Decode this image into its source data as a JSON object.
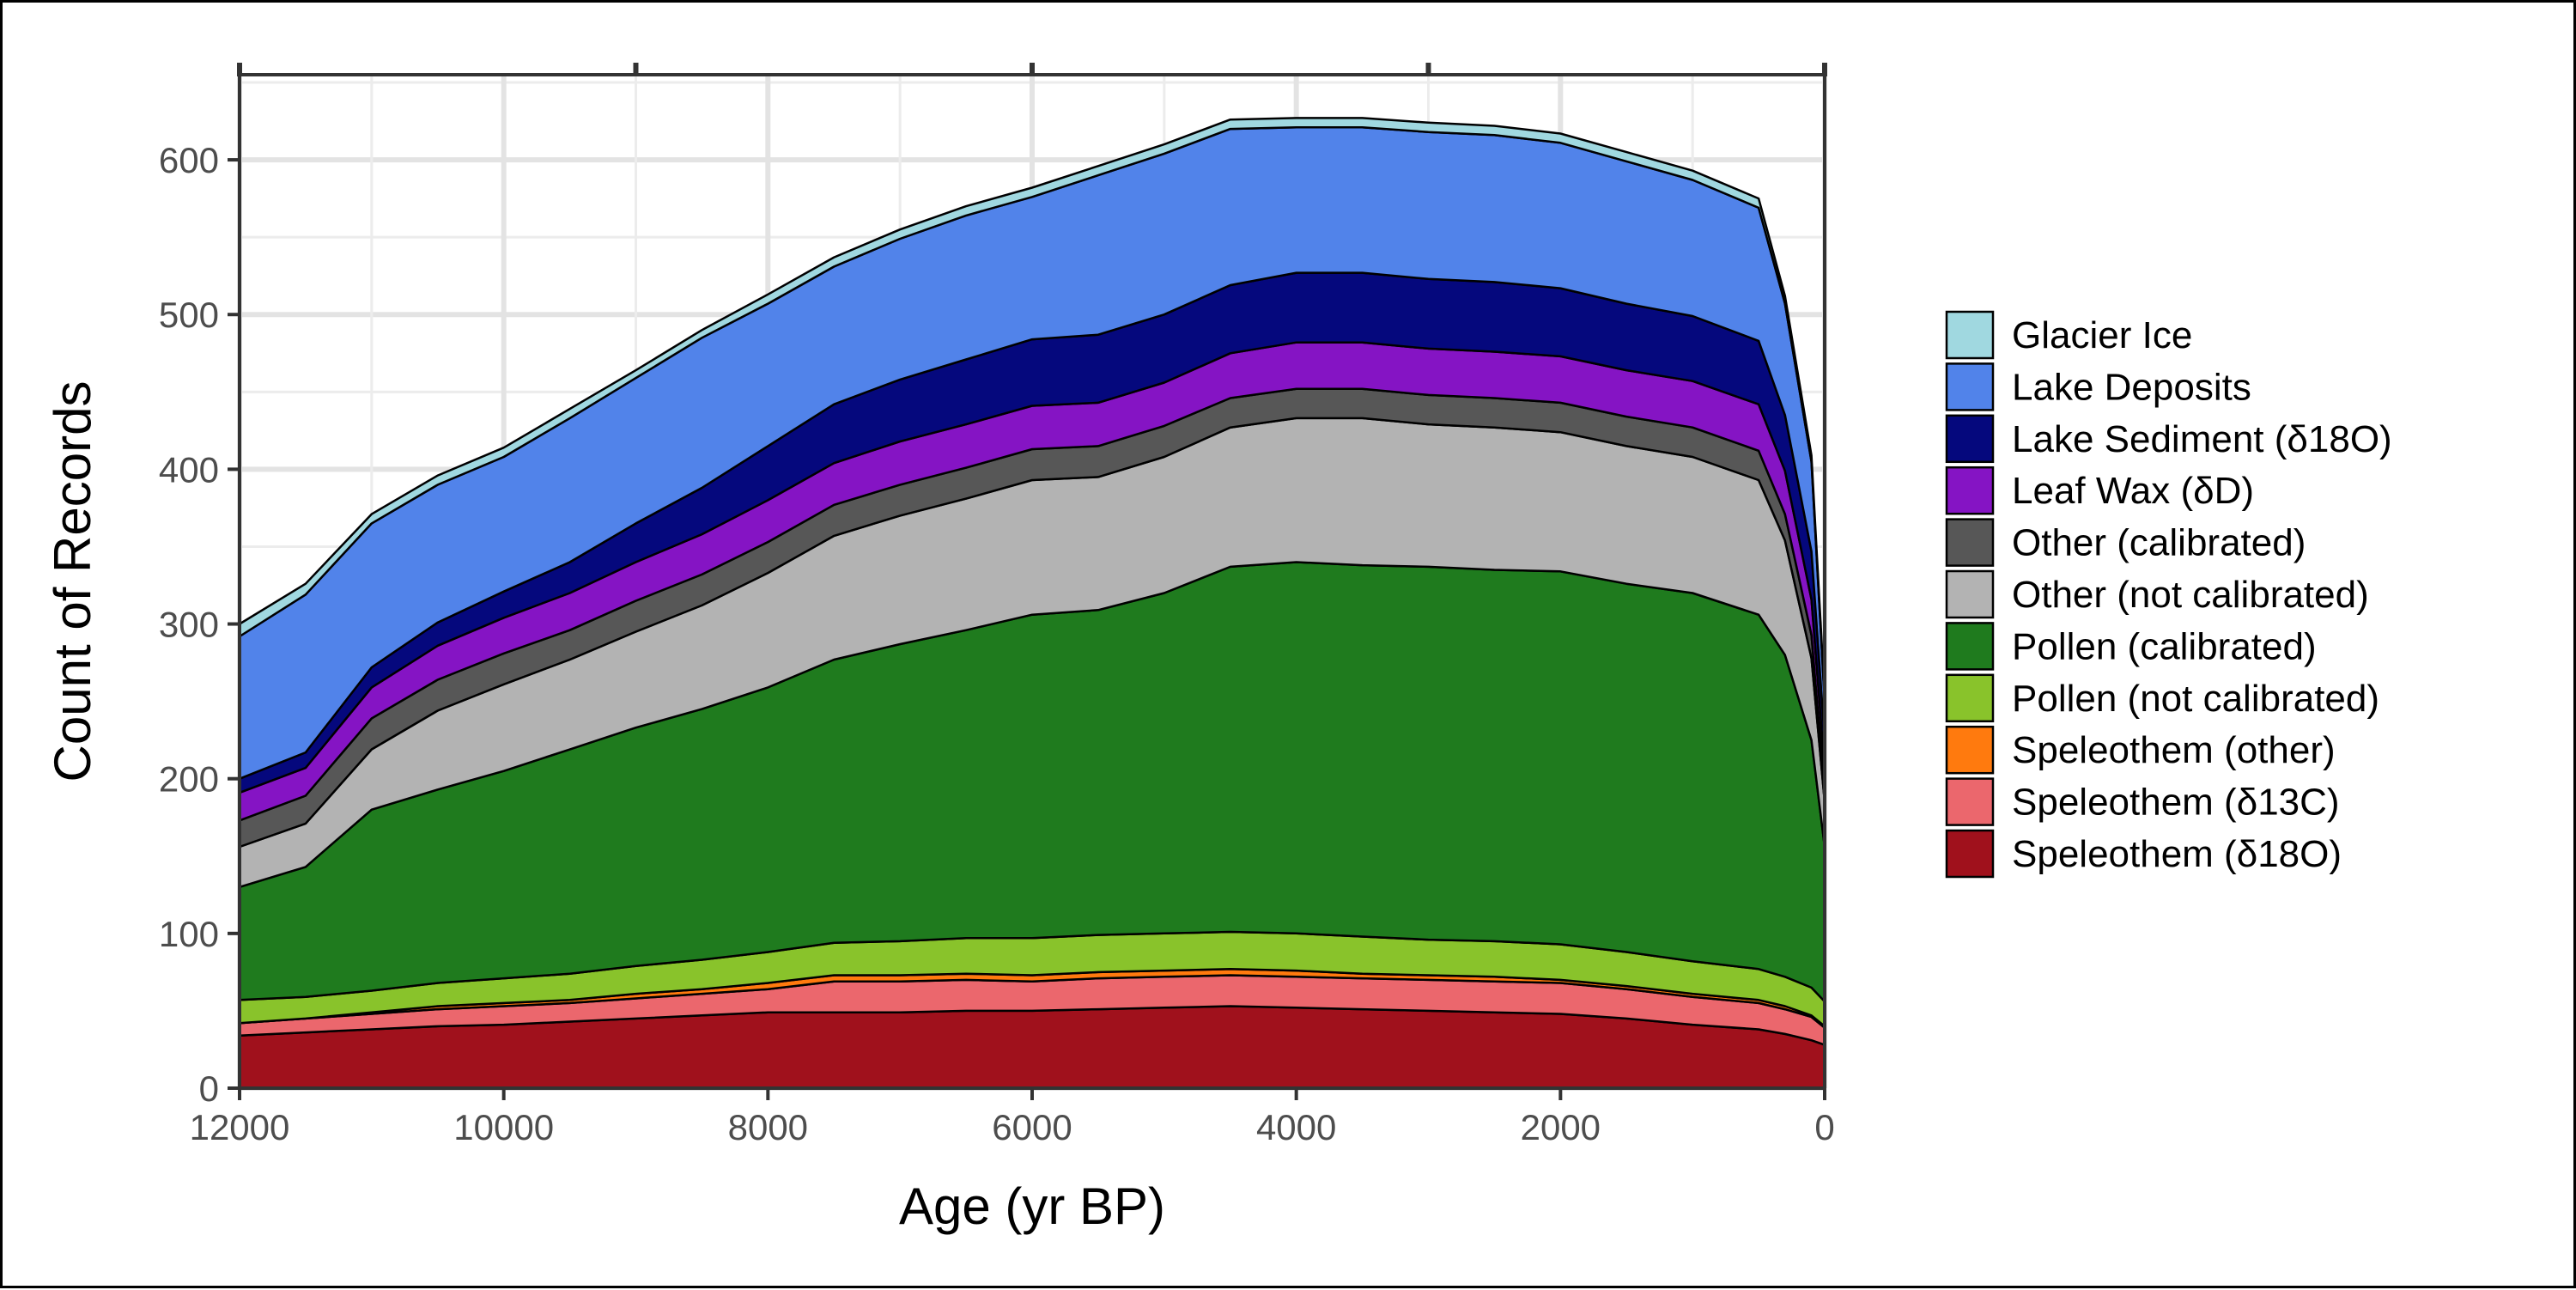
{
  "chart_data": {
    "type": "area",
    "stacked": true,
    "xlabel": "Age (yr BP)",
    "ylabel": "Count of Records",
    "xlim": [
      12000,
      0
    ],
    "x_reversed": true,
    "ylim": [
      0,
      655
    ],
    "x_ticks": [
      12000,
      10000,
      8000,
      6000,
      4000,
      2000,
      0
    ],
    "x_tick_labels": [
      "12000",
      "10000",
      "8000",
      "6000",
      "4000",
      "2000",
      "0"
    ],
    "top_ticks": [
      12000,
      9000,
      6000,
      3000,
      0
    ],
    "y_ticks": [
      0,
      100,
      200,
      300,
      400,
      500,
      600
    ],
    "y_tick_labels": [
      "0",
      "100",
      "200",
      "300",
      "400",
      "500",
      "600"
    ],
    "grid": true,
    "legend_position": "right",
    "x": [
      12000,
      11500,
      11000,
      10500,
      10000,
      9500,
      9000,
      8500,
      8000,
      7500,
      7000,
      6500,
      6000,
      5500,
      5000,
      4500,
      4000,
      3500,
      3000,
      2500,
      2000,
      1500,
      1000,
      500,
      300,
      100,
      0
    ],
    "series": [
      {
        "name": "Speleothem (δ18O)",
        "color": "#a0111c",
        "values": [
          34,
          36,
          38,
          40,
          41,
          43,
          45,
          47,
          49,
          49,
          49,
          50,
          50,
          51,
          52,
          53,
          52,
          51,
          50,
          49,
          48,
          45,
          41,
          38,
          35,
          31,
          28
        ]
      },
      {
        "name": "Speleothem (δ13C)",
        "color": "#eb676d",
        "values": [
          8,
          9,
          10,
          11,
          12,
          12,
          13,
          14,
          15,
          20,
          20,
          20,
          19,
          20,
          20,
          20,
          20,
          20,
          20,
          20,
          20,
          19,
          18,
          17,
          16,
          15,
          11
        ]
      },
      {
        "name": "Speleothem (other)",
        "color": "#ff7a0e",
        "values": [
          0,
          0,
          1,
          2,
          2,
          2,
          3,
          3,
          4,
          4,
          4,
          4,
          4,
          4,
          4,
          4,
          4,
          3,
          3,
          3,
          2,
          2,
          2,
          2,
          2,
          1,
          1
        ]
      },
      {
        "name": "Pollen (not calibrated)",
        "color": "#89c32b",
        "values": [
          15,
          14,
          14,
          15,
          16,
          17,
          18,
          19,
          20,
          21,
          22,
          23,
          24,
          24,
          24,
          24,
          24,
          24,
          23,
          23,
          23,
          22,
          21,
          20,
          19,
          18,
          16
        ]
      },
      {
        "name": "Pollen (calibrated)",
        "color": "#1f7b1e",
        "values": [
          73,
          84,
          117,
          125,
          134,
          145,
          154,
          162,
          171,
          183,
          192,
          199,
          209,
          210,
          220,
          236,
          240,
          240,
          241,
          240,
          241,
          238,
          238,
          229,
          208,
          160,
          100
        ]
      },
      {
        "name": "Other (not calibrated)",
        "color": "#b3b3b3",
        "values": [
          26,
          28,
          39,
          51,
          56,
          58,
          62,
          67,
          74,
          80,
          83,
          85,
          87,
          86,
          88,
          90,
          93,
          95,
          92,
          92,
          90,
          89,
          88,
          87,
          74,
          53,
          29
        ]
      },
      {
        "name": "Other (calibrated)",
        "color": "#575757",
        "values": [
          17,
          18,
          20,
          20,
          20,
          19,
          20,
          20,
          20,
          20,
          20,
          20,
          20,
          20,
          20,
          19,
          19,
          19,
          19,
          19,
          19,
          19,
          19,
          19,
          17,
          15,
          7
        ]
      },
      {
        "name": "Leaf Wax (δD)",
        "color": "#8514c4",
        "values": [
          18,
          18,
          20,
          22,
          23,
          24,
          25,
          26,
          27,
          27,
          28,
          28,
          28,
          28,
          28,
          29,
          30,
          30,
          30,
          30,
          30,
          30,
          30,
          30,
          28,
          23,
          15
        ]
      },
      {
        "name": "Lake Sediment (δ18O)",
        "color": "#05087d",
        "values": [
          9,
          10,
          13,
          15,
          17,
          20,
          25,
          30,
          35,
          38,
          40,
          42,
          43,
          44,
          44,
          44,
          45,
          45,
          45,
          45,
          44,
          43,
          42,
          41,
          36,
          31,
          19
        ]
      },
      {
        "name": "Lake Deposits",
        "color": "#5183ea",
        "values": [
          92,
          102,
          93,
          89,
          87,
          93,
          94,
          97,
          92,
          89,
          91,
          93,
          92,
          103,
          104,
          101,
          94,
          94,
          95,
          95,
          94,
          92,
          88,
          86,
          72,
          58,
          24
        ]
      },
      {
        "name": "Glacier Ice",
        "color": "#a0d8e0",
        "values": [
          8,
          7,
          6,
          6,
          6,
          6,
          5,
          5,
          6,
          6,
          6,
          6,
          6,
          6,
          6,
          6,
          6,
          6,
          6,
          6,
          6,
          6,
          6,
          6,
          5,
          4,
          3
        ]
      }
    ]
  }
}
